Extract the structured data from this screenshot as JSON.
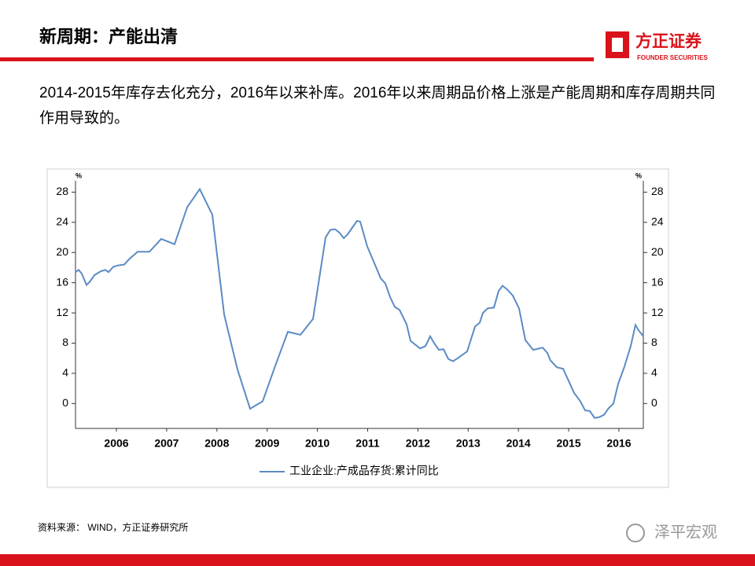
{
  "header": {
    "title": "新周期：产能出清",
    "logo_name": "方正证券",
    "logo_sub": "FOUNDER SECURITIES"
  },
  "body": {
    "text": "2014-2015年库存去化充分，2016年以来补库。2016年以来周期品价格上涨是产能周期和库存周期共同作用导致的。"
  },
  "chart_data": {
    "type": "line",
    "y_unit": "%",
    "y2_unit": "%",
    "x": [
      2005.686,
      2005.749,
      2005.811,
      2005.905,
      2005.968,
      2006.062,
      2006.187,
      2006.281,
      2006.343,
      2006.437,
      2006.531,
      2006.657,
      2006.75,
      2006.923,
      2007.157,
      2007.392,
      2007.658,
      2007.909,
      2008.159,
      2008.409,
      2008.644,
      2008.91,
      2009.161,
      2009.411,
      2009.661,
      2009.912,
      2010.162,
      2010.413,
      2010.663,
      2010.757,
      2010.851,
      2010.945,
      2011.023,
      2011.101,
      2011.195,
      2011.289,
      2011.352,
      2011.492,
      2011.665,
      2011.758,
      2011.852,
      2011.946,
      2012.04,
      2012.134,
      2012.275,
      2012.353,
      2012.447,
      2012.541,
      2012.65,
      2012.744,
      2012.823,
      2012.917,
      2013.01,
      2013.104,
      2013.198,
      2013.292,
      2013.48,
      2013.636,
      2013.73,
      2013.793,
      2013.887,
      2014.012,
      2014.106,
      2014.184,
      2014.278,
      2014.388,
      2014.513,
      2014.638,
      2014.794,
      2014.982,
      2015.076,
      2015.139,
      2015.264,
      2015.389,
      2015.514,
      2015.608,
      2015.733,
      2015.827,
      2015.921,
      2016.015,
      2016.109,
      2016.203,
      2016.297,
      2016.391,
      2016.485,
      2016.61,
      2016.735,
      2016.829,
      2016.892,
      2016.986
    ],
    "series": [
      {
        "name": "工业企业:产成品存货:累计同比",
        "color": "#5b8bc4",
        "axis": "y",
        "values": [
          17.4,
          17.7,
          17.2,
          15.7,
          16.1,
          17.0,
          17.5,
          17.7,
          17.4,
          18.1,
          18.3,
          18.4,
          19.1,
          20.1,
          20.1,
          21.8,
          21.1,
          26.0,
          28.4,
          25.0,
          11.8,
          4.5,
          -0.7,
          0.3,
          5.0,
          9.5,
          9.1,
          11.2,
          22.0,
          23.0,
          23.1,
          22.6,
          21.9,
          22.4,
          23.3,
          24.2,
          24.1,
          20.8,
          18.1,
          16.6,
          15.9,
          14.1,
          12.8,
          12.4,
          10.5,
          8.3,
          7.8,
          7.3,
          7.6,
          8.9,
          8.0,
          7.1,
          7.2,
          5.9,
          5.6,
          6.0,
          6.9,
          10.2,
          10.7,
          12.0,
          12.6,
          12.7,
          14.9,
          15.6,
          15.1,
          14.3,
          12.6,
          8.4,
          7.1,
          7.4,
          6.7,
          5.7,
          4.8,
          4.6,
          2.8,
          1.4,
          0.3,
          -0.9,
          -1.0,
          -1.9,
          -1.8,
          -1.5,
          -0.6,
          0.0,
          2.6,
          4.9,
          7.6,
          10.4,
          9.7,
          8.9
        ]
      }
    ],
    "xlim": [
      2005.686,
      2016.986
    ],
    "xticks": [
      {
        "value": 2006.5,
        "label": "2006"
      },
      {
        "value": 2007.5,
        "label": "2007"
      },
      {
        "value": 2008.5,
        "label": "2008"
      },
      {
        "value": 2009.5,
        "label": "2009"
      },
      {
        "value": 2010.5,
        "label": "2010"
      },
      {
        "value": 2011.5,
        "label": "2011"
      },
      {
        "value": 2012.5,
        "label": "2012"
      },
      {
        "value": 2013.5,
        "label": "2013"
      },
      {
        "value": 2014.5,
        "label": "2014"
      },
      {
        "value": 2015.5,
        "label": "2015"
      },
      {
        "value": 2016.5,
        "label": "2016"
      }
    ],
    "ylim": [
      -3.3,
      29.5
    ],
    "yticks": [
      0,
      4,
      8,
      12,
      16,
      20,
      24,
      28
    ],
    "y2lim": [
      -3.3,
      29.5
    ],
    "y2ticks": [
      0,
      4,
      8,
      12,
      16,
      20,
      24,
      28
    ],
    "grid": false,
    "legend": "bottom"
  },
  "footer": {
    "source": "资料来源： WIND，方正证券研究所",
    "watermark": "泽平宏观"
  }
}
